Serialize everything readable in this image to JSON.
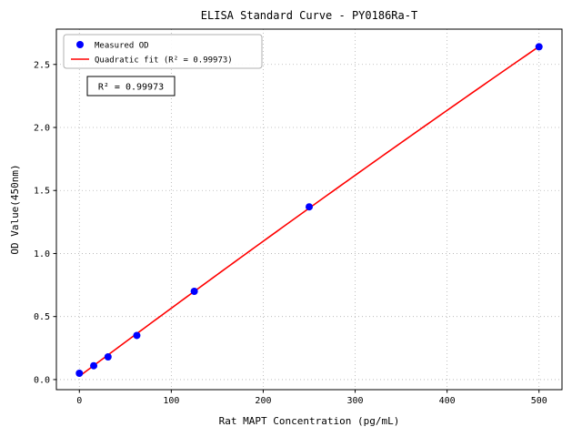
{
  "figure": {
    "title": "ELISA Standard Curve - PY0186Ra-T"
  },
  "chart_data": {
    "type": "scatter",
    "title": "ELISA Standard Curve - PY0186Ra-T",
    "xlabel": "Rat MAPT Concentration (pg/mL)",
    "ylabel": "OD Value(450nm)",
    "xlim": [
      -25,
      525
    ],
    "ylim": [
      -0.08,
      2.78
    ],
    "xticks": [
      0,
      100,
      200,
      300,
      400,
      500
    ],
    "xtick_labels": [
      "0",
      "100",
      "200",
      "300",
      "400",
      "500"
    ],
    "yticks": [
      0.0,
      0.5,
      1.0,
      1.5,
      2.0,
      2.5
    ],
    "ytick_labels": [
      "0.0",
      "0.5",
      "1.0",
      "1.5",
      "2.0",
      "2.5"
    ],
    "grid": true,
    "grid_color": "#b0b0b0",
    "legend_position": "upper-left",
    "series": [
      {
        "name": "Measured OD",
        "type": "scatter",
        "color": "#0000ff",
        "x": [
          0,
          15.6,
          31.2,
          62.5,
          125,
          250,
          500
        ],
        "y": [
          0.05,
          0.11,
          0.18,
          0.35,
          0.7,
          1.37,
          2.64
        ]
      },
      {
        "name": "Quadratic fit (R² = 0.99973)",
        "type": "line",
        "fit": "quadratic",
        "color": "#ff0000",
        "source_series": 0
      }
    ],
    "annotation": "R² = 0.99973",
    "r_squared": 0.99973
  }
}
